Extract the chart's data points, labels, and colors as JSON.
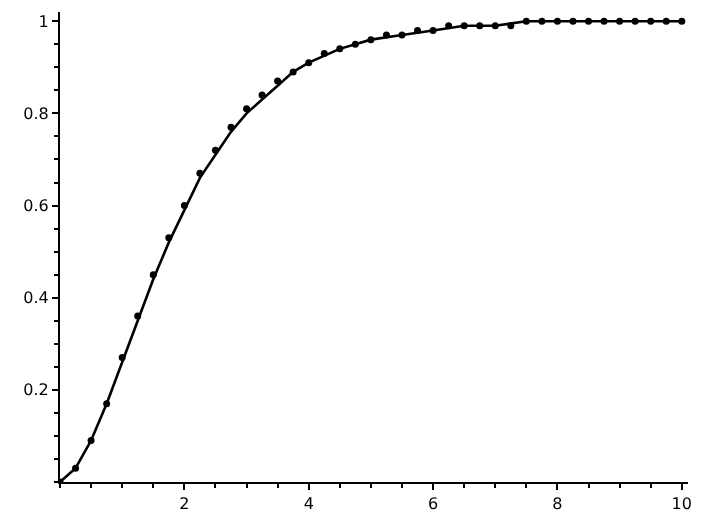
{
  "chart_data": {
    "type": "line",
    "xlim": [
      0,
      10.1
    ],
    "ylim": [
      0,
      1.02
    ],
    "xticks": [
      2,
      4,
      6,
      8,
      10
    ],
    "yticks": [
      0.2,
      0.4,
      0.6,
      0.8,
      1
    ],
    "series": [
      {
        "color": "#000000",
        "line_style": "solid",
        "marker": "none",
        "x": [
          0,
          0.25,
          0.5,
          0.75,
          1,
          1.25,
          1.5,
          1.75,
          2,
          2.25,
          2.5,
          2.75,
          3,
          3.25,
          3.5,
          3.75,
          4,
          4.5,
          5,
          5.5,
          6,
          6.5,
          7,
          7.5,
          8,
          9,
          10
        ],
        "values": [
          0,
          0.03,
          0.09,
          0.17,
          0.26,
          0.35,
          0.44,
          0.52,
          0.59,
          0.66,
          0.71,
          0.76,
          0.8,
          0.83,
          0.86,
          0.89,
          0.91,
          0.94,
          0.96,
          0.97,
          0.98,
          0.99,
          0.99,
          1,
          1,
          1,
          1
        ]
      },
      {
        "type": "scatter",
        "color": "#000000",
        "marker": "circle",
        "x": [
          0,
          0.25,
          0.5,
          0.75,
          1,
          1.25,
          1.5,
          1.75,
          2,
          2.25,
          2.5,
          2.75,
          3,
          3.25,
          3.5,
          3.75,
          4,
          4.25,
          4.5,
          4.75,
          5,
          5.25,
          5.5,
          5.75,
          6,
          6.25,
          6.5,
          6.75,
          7,
          7.25,
          7.5,
          7.75,
          8,
          8.25,
          8.5,
          8.75,
          9,
          9.25,
          9.5,
          9.75,
          10
        ],
        "values": [
          0,
          0.03,
          0.09,
          0.17,
          0.27,
          0.36,
          0.45,
          0.53,
          0.6,
          0.67,
          0.72,
          0.77,
          0.81,
          0.84,
          0.87,
          0.89,
          0.91,
          0.93,
          0.94,
          0.95,
          0.96,
          0.97,
          0.97,
          0.98,
          0.98,
          0.99,
          0.99,
          0.99,
          0.99,
          0.99,
          1,
          1,
          1,
          1,
          1,
          1,
          1,
          1,
          1,
          1,
          1
        ]
      }
    ]
  }
}
